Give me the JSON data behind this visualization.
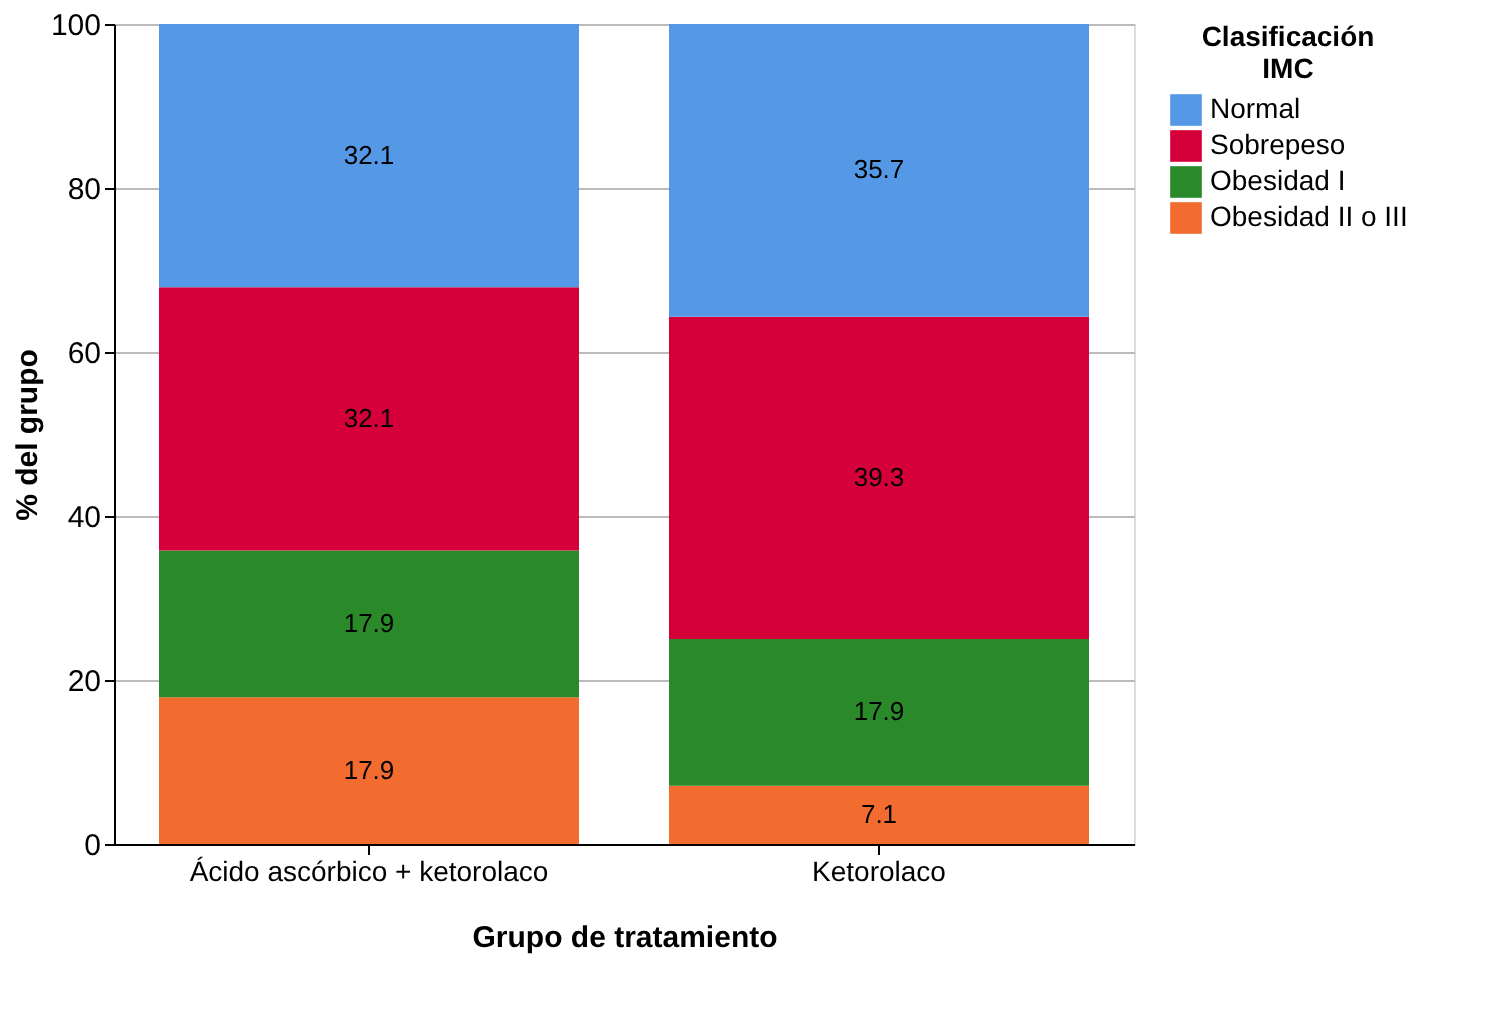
{
  "chart_data": {
    "type": "bar",
    "stacked": true,
    "xlabel": "Grupo de tratamiento",
    "ylabel": "% del grupo",
    "legend_title": "Clasificación IMC",
    "categories": [
      "Ácido ascórbico + ketorolaco",
      "Ketorolaco"
    ],
    "series": [
      {
        "name": "Obesidad II o III",
        "color": "#f26b2f",
        "values": [
          17.9,
          7.1
        ]
      },
      {
        "name": "Obesidad I",
        "color": "#2a8a2a",
        "values": [
          17.9,
          17.9
        ]
      },
      {
        "name": "Sobrepeso",
        "color": "#d5003a",
        "values": [
          32.1,
          39.3
        ]
      },
      {
        "name": "Normal",
        "color": "#5599e6",
        "values": [
          32.1,
          35.7
        ]
      }
    ],
    "ylim": [
      0,
      100
    ],
    "yticks": [
      0,
      20,
      40,
      60,
      80,
      100
    ],
    "grid": "y",
    "legend": "top right",
    "data_labels": true
  }
}
